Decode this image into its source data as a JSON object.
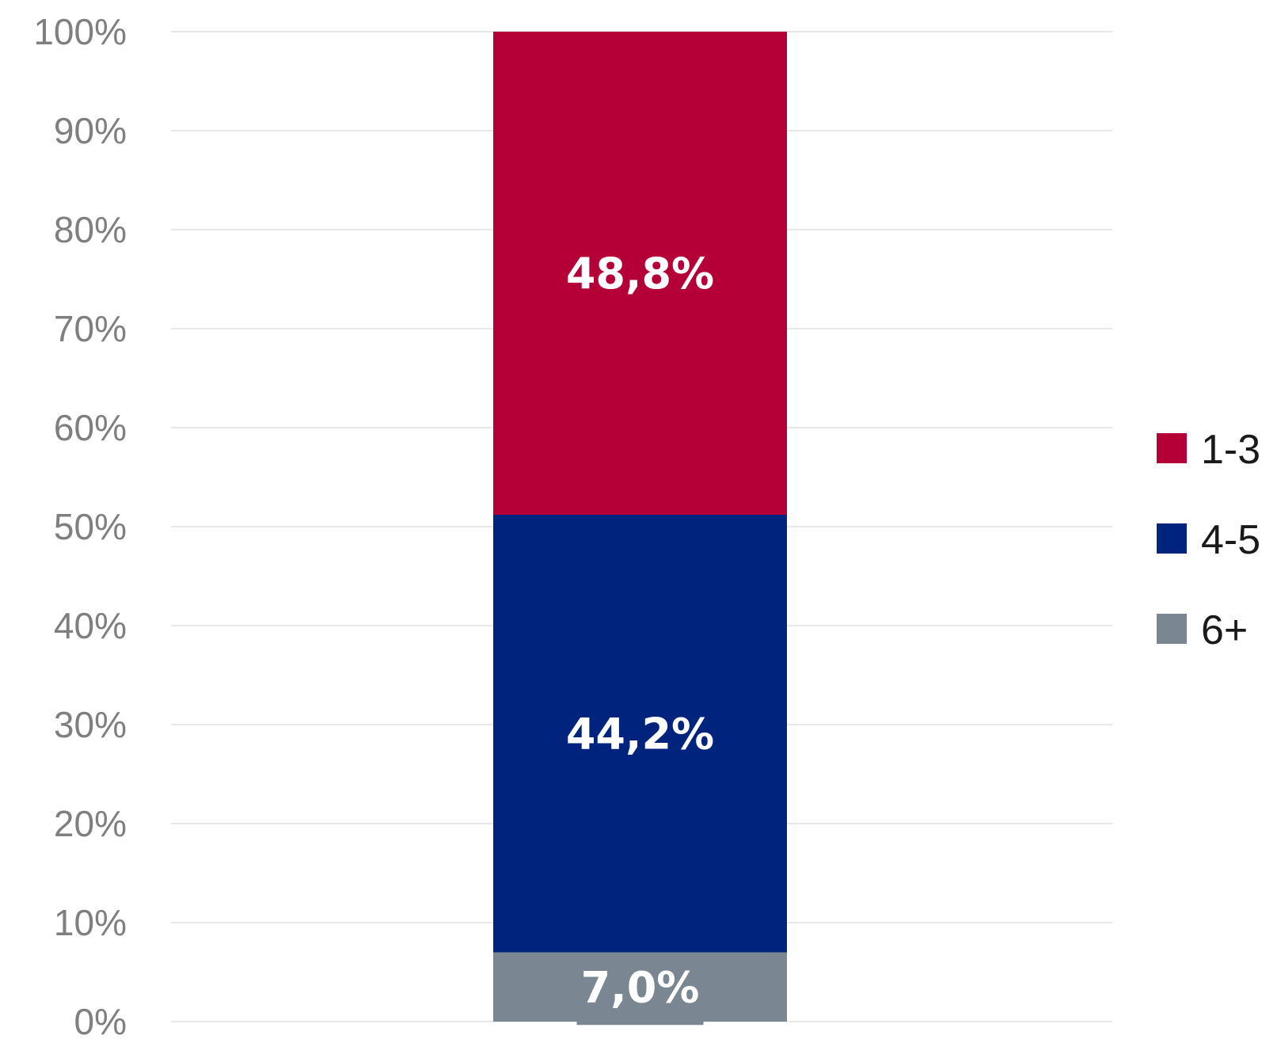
{
  "chart_data": {
    "type": "bar",
    "stacked": true,
    "categories": [
      ""
    ],
    "series": [
      {
        "name": "1-3",
        "values": [
          48.8
        ],
        "label": "48,8%",
        "color": "#b40037"
      },
      {
        "name": "4-5",
        "values": [
          44.2
        ],
        "label": "44,2%",
        "color": "#00247d"
      },
      {
        "name": "6+",
        "values": [
          7.0
        ],
        "label": "7,0%",
        "color": "#7a8793"
      }
    ],
    "stack_order": [
      "6+",
      "4-5",
      "1-3"
    ],
    "ylim": [
      0,
      100
    ],
    "yticks": [
      0,
      10,
      20,
      30,
      40,
      50,
      60,
      70,
      80,
      90,
      100
    ],
    "ytick_labels": [
      "0%",
      "10%",
      "20%",
      "30%",
      "40%",
      "50%",
      "60%",
      "70%",
      "80%",
      "90%",
      "100%"
    ],
    "grid": true,
    "legend": {
      "position": "right",
      "entries": [
        "1-3",
        "4-5",
        "6+"
      ]
    },
    "title": "",
    "xlabel": "",
    "ylabel": ""
  }
}
